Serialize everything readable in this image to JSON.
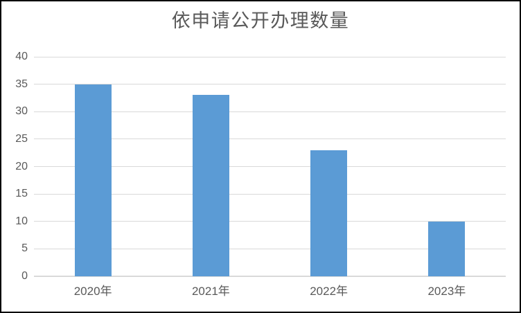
{
  "chart_data": {
    "type": "bar",
    "title": "依申请公开办理数量",
    "categories": [
      "2020年",
      "2021年",
      "2022年",
      "2023年"
    ],
    "values": [
      35,
      33,
      23,
      10
    ],
    "xlabel": "",
    "ylabel": "",
    "ylim": [
      0,
      40
    ],
    "yticks": [
      0,
      5,
      10,
      15,
      20,
      25,
      30,
      35,
      40
    ],
    "grid": true,
    "legend": "none",
    "colors": {
      "bar": "#5b9bd5",
      "gridline": "#d9d9d9",
      "axis_line": "#d9d9d9",
      "text": "#595959",
      "frame_border": "#000000",
      "background": "#ffffff"
    }
  }
}
